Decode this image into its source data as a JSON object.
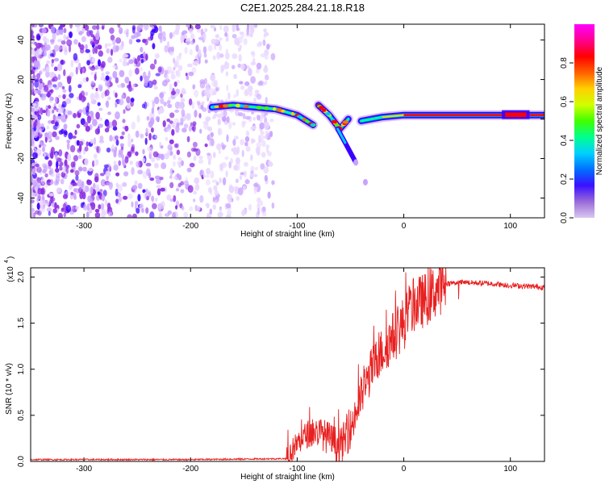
{
  "title": "C2E1.2025.284.21.18.R18",
  "colors": {
    "spectrogram_cmap": [
      "#ffffff",
      "#e8d6ff",
      "#c9a2ff",
      "#8a2be2",
      "#3a00ff",
      "#0064ff",
      "#00c8ff",
      "#00ffa0",
      "#40ff00",
      "#c8ff00",
      "#ffd000",
      "#ff7000",
      "#ff0000",
      "#ff00aa",
      "#ff00ff"
    ],
    "snr_line": "#e82020"
  },
  "chart_data": [
    {
      "type": "heatmap",
      "name": "spectrogram",
      "xlabel": "Height of straight line (km)",
      "ylabel": "Frequency (Hz)",
      "xlim": [
        -350,
        132
      ],
      "ylim": [
        -50,
        48
      ],
      "xticks": [
        -300,
        -200,
        -100,
        0,
        100
      ],
      "xtick_labels": [
        "-300",
        "-200",
        "-100",
        "0",
        "100"
      ],
      "yticks": [
        -40,
        -20,
        0,
        20,
        40
      ],
      "ytick_labels": [
        "-40",
        "-20",
        "0",
        "20",
        "40"
      ],
      "noise_region_x": [
        -350,
        -130
      ],
      "track": [
        {
          "x": -180,
          "y": 6
        },
        {
          "x": -160,
          "y": 7
        },
        {
          "x": -140,
          "y": 6
        },
        {
          "x": -120,
          "y": 5
        },
        {
          "x": -100,
          "y": 2
        },
        {
          "x": -85,
          "y": -3
        },
        {
          "x": -80,
          "y": 7
        },
        {
          "x": -70,
          "y": 2
        },
        {
          "x": -60,
          "y": -5
        },
        {
          "x": -52,
          "y": 0
        },
        {
          "x": -40,
          "y": -1
        },
        {
          "x": -20,
          "y": 1
        },
        {
          "x": 0,
          "y": 2
        },
        {
          "x": 50,
          "y": 2
        },
        {
          "x": 90,
          "y": 2
        },
        {
          "x": 132,
          "y": 2
        }
      ],
      "branch": [
        {
          "x": -62,
          "y": -5
        },
        {
          "x": -55,
          "y": -12
        },
        {
          "x": -45,
          "y": -22
        },
        {
          "x": -36,
          "y": -32
        }
      ],
      "colorbar": {
        "label": "Normalized spectral amplitude",
        "range": [
          0,
          1
        ],
        "ticks": [
          0.0,
          0.2,
          0.4,
          0.6,
          0.8
        ],
        "tick_labels": [
          "0.0",
          "0.2",
          "0.4",
          "0.6",
          "0.8"
        ]
      }
    },
    {
      "type": "line",
      "name": "snr",
      "xlabel": "Height of straight line (km)",
      "ylabel": "SNR (10 * v/v)",
      "multiplier_label": "(x10",
      "multiplier_exp": "4",
      "xlim": [
        -350,
        132
      ],
      "ylim": [
        0,
        2.1
      ],
      "xticks": [
        -300,
        -200,
        -100,
        0,
        100
      ],
      "xtick_labels": [
        "-300",
        "-200",
        "-100",
        "0",
        "100"
      ],
      "yticks": [
        0.0,
        0.5,
        1.0,
        1.5,
        2.0
      ],
      "ytick_labels": [
        "0.0",
        "0.5",
        "1.0",
        "1.5",
        "2.0"
      ],
      "series": [
        {
          "name": "SNR",
          "x": [
            -350,
            -200,
            -110,
            -100,
            -90,
            -80,
            -70,
            -60,
            -50,
            -40,
            -30,
            -20,
            -10,
            0,
            10,
            20,
            30,
            40,
            50,
            60,
            80,
            100,
            132
          ],
          "y": [
            0.02,
            0.02,
            0.03,
            0.2,
            0.3,
            0.32,
            0.25,
            0.15,
            0.35,
            0.7,
            1.0,
            1.2,
            1.35,
            1.5,
            1.7,
            1.75,
            1.85,
            1.93,
            1.94,
            1.94,
            1.93,
            1.91,
            1.89
          ]
        }
      ]
    }
  ]
}
